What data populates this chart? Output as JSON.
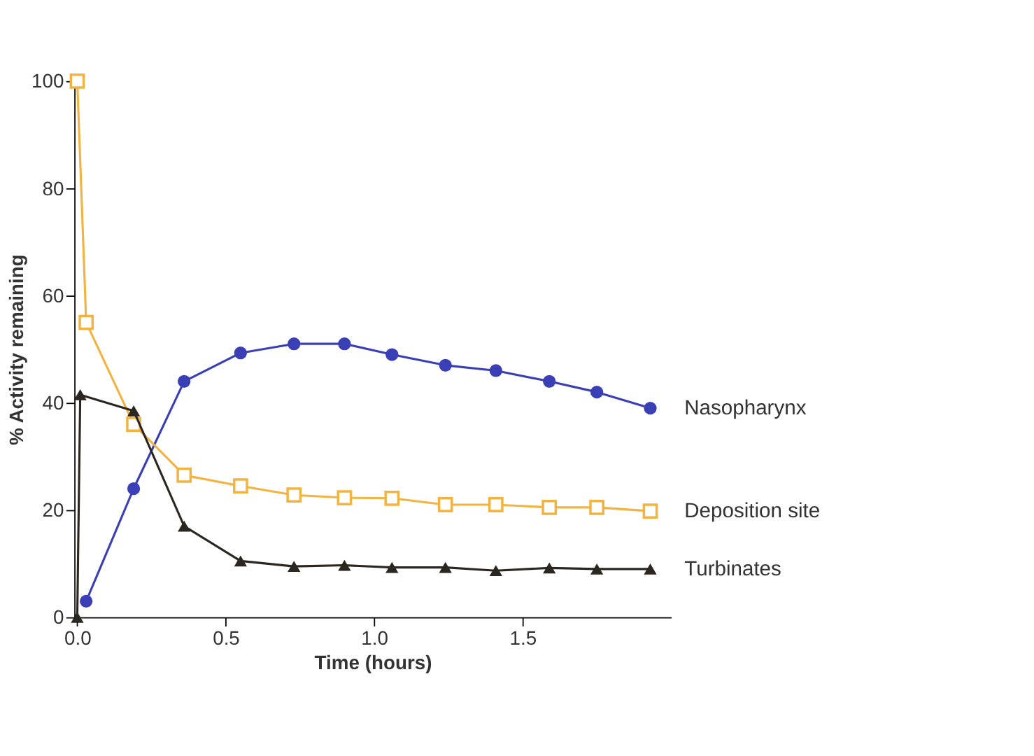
{
  "chart_data": {
    "type": "line",
    "xlabel": "Time (hours)",
    "ylabel": "% Activity remaining",
    "xlim": [
      -0.01,
      2.0
    ],
    "ylim": [
      0,
      100
    ],
    "xticks": [
      {
        "value": 0,
        "label": "0.0"
      },
      {
        "value": 0.5,
        "label": "0.5"
      },
      {
        "value": 1,
        "label": "1.0"
      },
      {
        "value": 1.5,
        "label": "1.5"
      }
    ],
    "yticks": [
      0,
      20,
      40,
      60,
      80,
      100
    ],
    "grid": false,
    "legend": false,
    "series": [
      {
        "name": "Nasopharynx",
        "color": "#3a3fb5",
        "marker": "circle",
        "x": [
          0.03,
          0.19,
          0.36,
          0.55,
          0.73,
          0.9,
          1.06,
          1.24,
          1.41,
          1.59,
          1.75,
          1.93
        ],
        "values": [
          3,
          24,
          44,
          49.3,
          51,
          51,
          49,
          47,
          46,
          44,
          42,
          39
        ]
      },
      {
        "name": "Deposition site",
        "color": "#f2b340",
        "marker": "square",
        "x": [
          0,
          0.03,
          0.19,
          0.36,
          0.55,
          0.73,
          0.9,
          1.06,
          1.24,
          1.41,
          1.59,
          1.75,
          1.93
        ],
        "values": [
          100,
          55,
          36,
          26.5,
          24.5,
          22.8,
          22.3,
          22.2,
          21,
          21,
          20.5,
          20.5,
          19.8
        ]
      },
      {
        "name": "Turbinates",
        "color": "#2b2620",
        "marker": "triangle",
        "x": [
          0,
          0.01,
          0.19,
          0.36,
          0.55,
          0.73,
          0.9,
          1.06,
          1.24,
          1.41,
          1.59,
          1.75,
          1.93
        ],
        "values": [
          0,
          41.5,
          38.5,
          17,
          10.5,
          9.5,
          9.7,
          9.3,
          9.3,
          8.7,
          9.2,
          9,
          9
        ]
      }
    ]
  }
}
